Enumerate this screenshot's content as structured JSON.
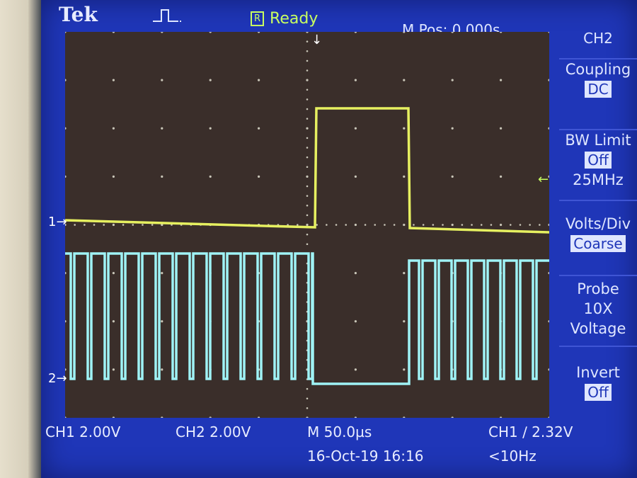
{
  "header": {
    "brand": "Tek",
    "acquisition_status_icon": "R",
    "acquisition_status": "Ready",
    "m_pos": "M Pos: 0.000s"
  },
  "markers": {
    "ch1": "1→",
    "ch2": "2→",
    "trigger_position": "↓",
    "trigger_level": "←"
  },
  "menu": {
    "title": "CH2",
    "coupling_label": "Coupling",
    "coupling_value": "DC",
    "bw_limit_label": "BW Limit",
    "bw_limit_value": "Off",
    "bw_limit_freq": "25MHz",
    "volts_div_label": "Volts/Div",
    "volts_div_value": "Coarse",
    "probe_label": "Probe",
    "probe_atten": "10X",
    "probe_type": "Voltage",
    "invert_label": "Invert",
    "invert_value": "Off"
  },
  "footer": {
    "ch1_scale": "CH1  2.00V",
    "ch2_scale": "CH2  2.00V",
    "timebase": "M 50.0µs",
    "date_time": "16-Oct-19 16:16",
    "trigger": "CH1 ∕ 2.32V",
    "frequency": "<10Hz"
  },
  "colors": {
    "screen": "#1f36b8",
    "ch1_trace": "#e6f060",
    "ch2_trace": "#9ff3f6",
    "grid_dot": "#c9c6b8"
  }
}
